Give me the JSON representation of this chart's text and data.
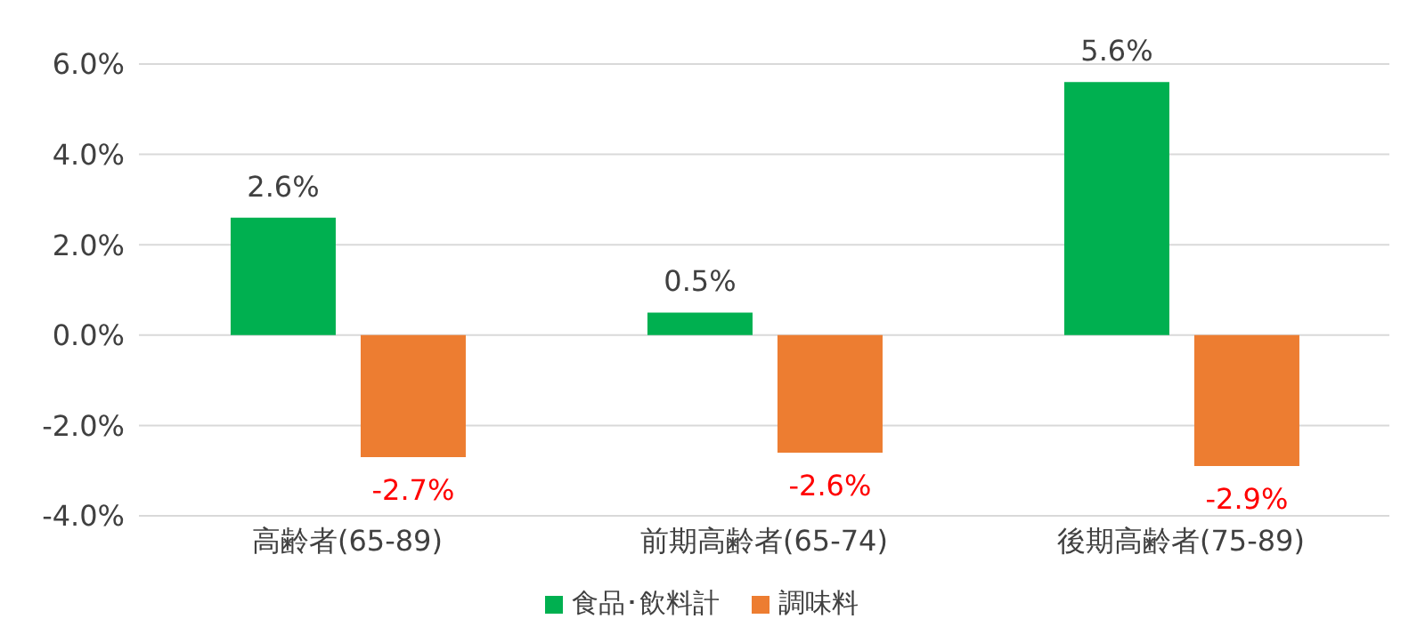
{
  "chart_data": {
    "type": "bar",
    "categories": [
      "高齢者(65-89)",
      "前期高齢者(65-74)",
      "後期高齢者(75-89)"
    ],
    "series": [
      {
        "name": "食品･飲料計",
        "color": "#00b050",
        "values": [
          2.6,
          0.5,
          5.6
        ],
        "value_labels": [
          "2.6%",
          "0.5%",
          "5.6%"
        ]
      },
      {
        "name": "調味料",
        "color": "#ed7d31",
        "values": [
          -2.7,
          -2.6,
          -2.9
        ],
        "value_labels": [
          "-2.7%",
          "-2.6%",
          "-2.9%"
        ]
      }
    ],
    "ylim": [
      -4,
      6
    ],
    "yticks": [
      {
        "value": -4,
        "label": "-4.0%"
      },
      {
        "value": -2,
        "label": "-2.0%"
      },
      {
        "value": 0,
        "label": "0.0%"
      },
      {
        "value": 2,
        "label": "2.0%"
      },
      {
        "value": 4,
        "label": "4.0%"
      },
      {
        "value": 6,
        "label": "6.0%"
      }
    ],
    "grid": "y",
    "legend": "bottom"
  }
}
